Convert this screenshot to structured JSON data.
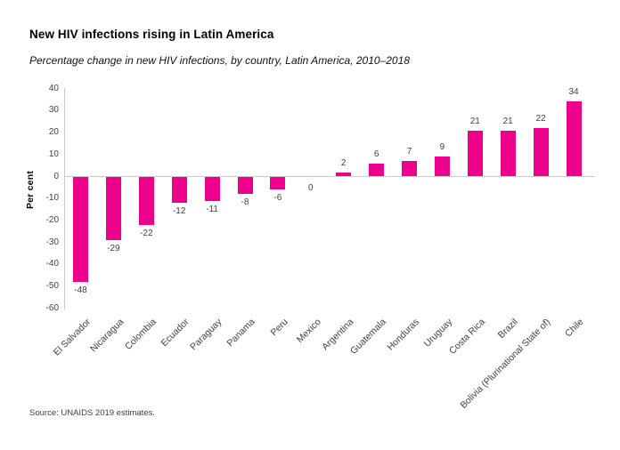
{
  "header": {
    "title": "New HIV infections rising in Latin America",
    "subtitle": "Percentage change in new HIV infections, by country, Latin America, 2010–2018"
  },
  "chart_data": {
    "type": "bar",
    "title": "New HIV infections rising in Latin America",
    "subtitle": "Percentage change in new HIV infections, by country, Latin America, 2010–2018",
    "categories": [
      "El Salvador",
      "Nicaragua",
      "Colombia",
      "Ecuador",
      "Paraguay",
      "Panama",
      "Peru",
      "Mexico",
      "Argentina",
      "Guatemala",
      "Honduras",
      "Uruguay",
      "Costa Rica",
      "Brazil",
      "Bolivia (Plurinational State of)",
      "Chile"
    ],
    "values": [
      -48,
      -29,
      -22,
      -12,
      -11,
      -8,
      -6,
      0,
      2,
      6,
      7,
      9,
      21,
      21,
      22,
      34
    ],
    "data_labels": [
      -48,
      -29,
      -22,
      -12,
      -11,
      -8,
      -6,
      0,
      2,
      6,
      7,
      9,
      21,
      21,
      22,
      34
    ],
    "xlabel": "",
    "ylabel": "Per cent",
    "ylim": [
      -60,
      40
    ],
    "yticks": [
      40,
      30,
      20,
      10,
      0,
      -10,
      -20,
      -30,
      -40,
      -50,
      -60
    ],
    "grid": "zero-baseline-only",
    "legend": "none",
    "category_label_rotation_deg": 45,
    "colors": {
      "bar": "#ec008c",
      "axis": "#c9c9c9",
      "label": "#414141"
    }
  },
  "footer": {
    "source": "Source: UNAIDS 2019 estimates."
  }
}
